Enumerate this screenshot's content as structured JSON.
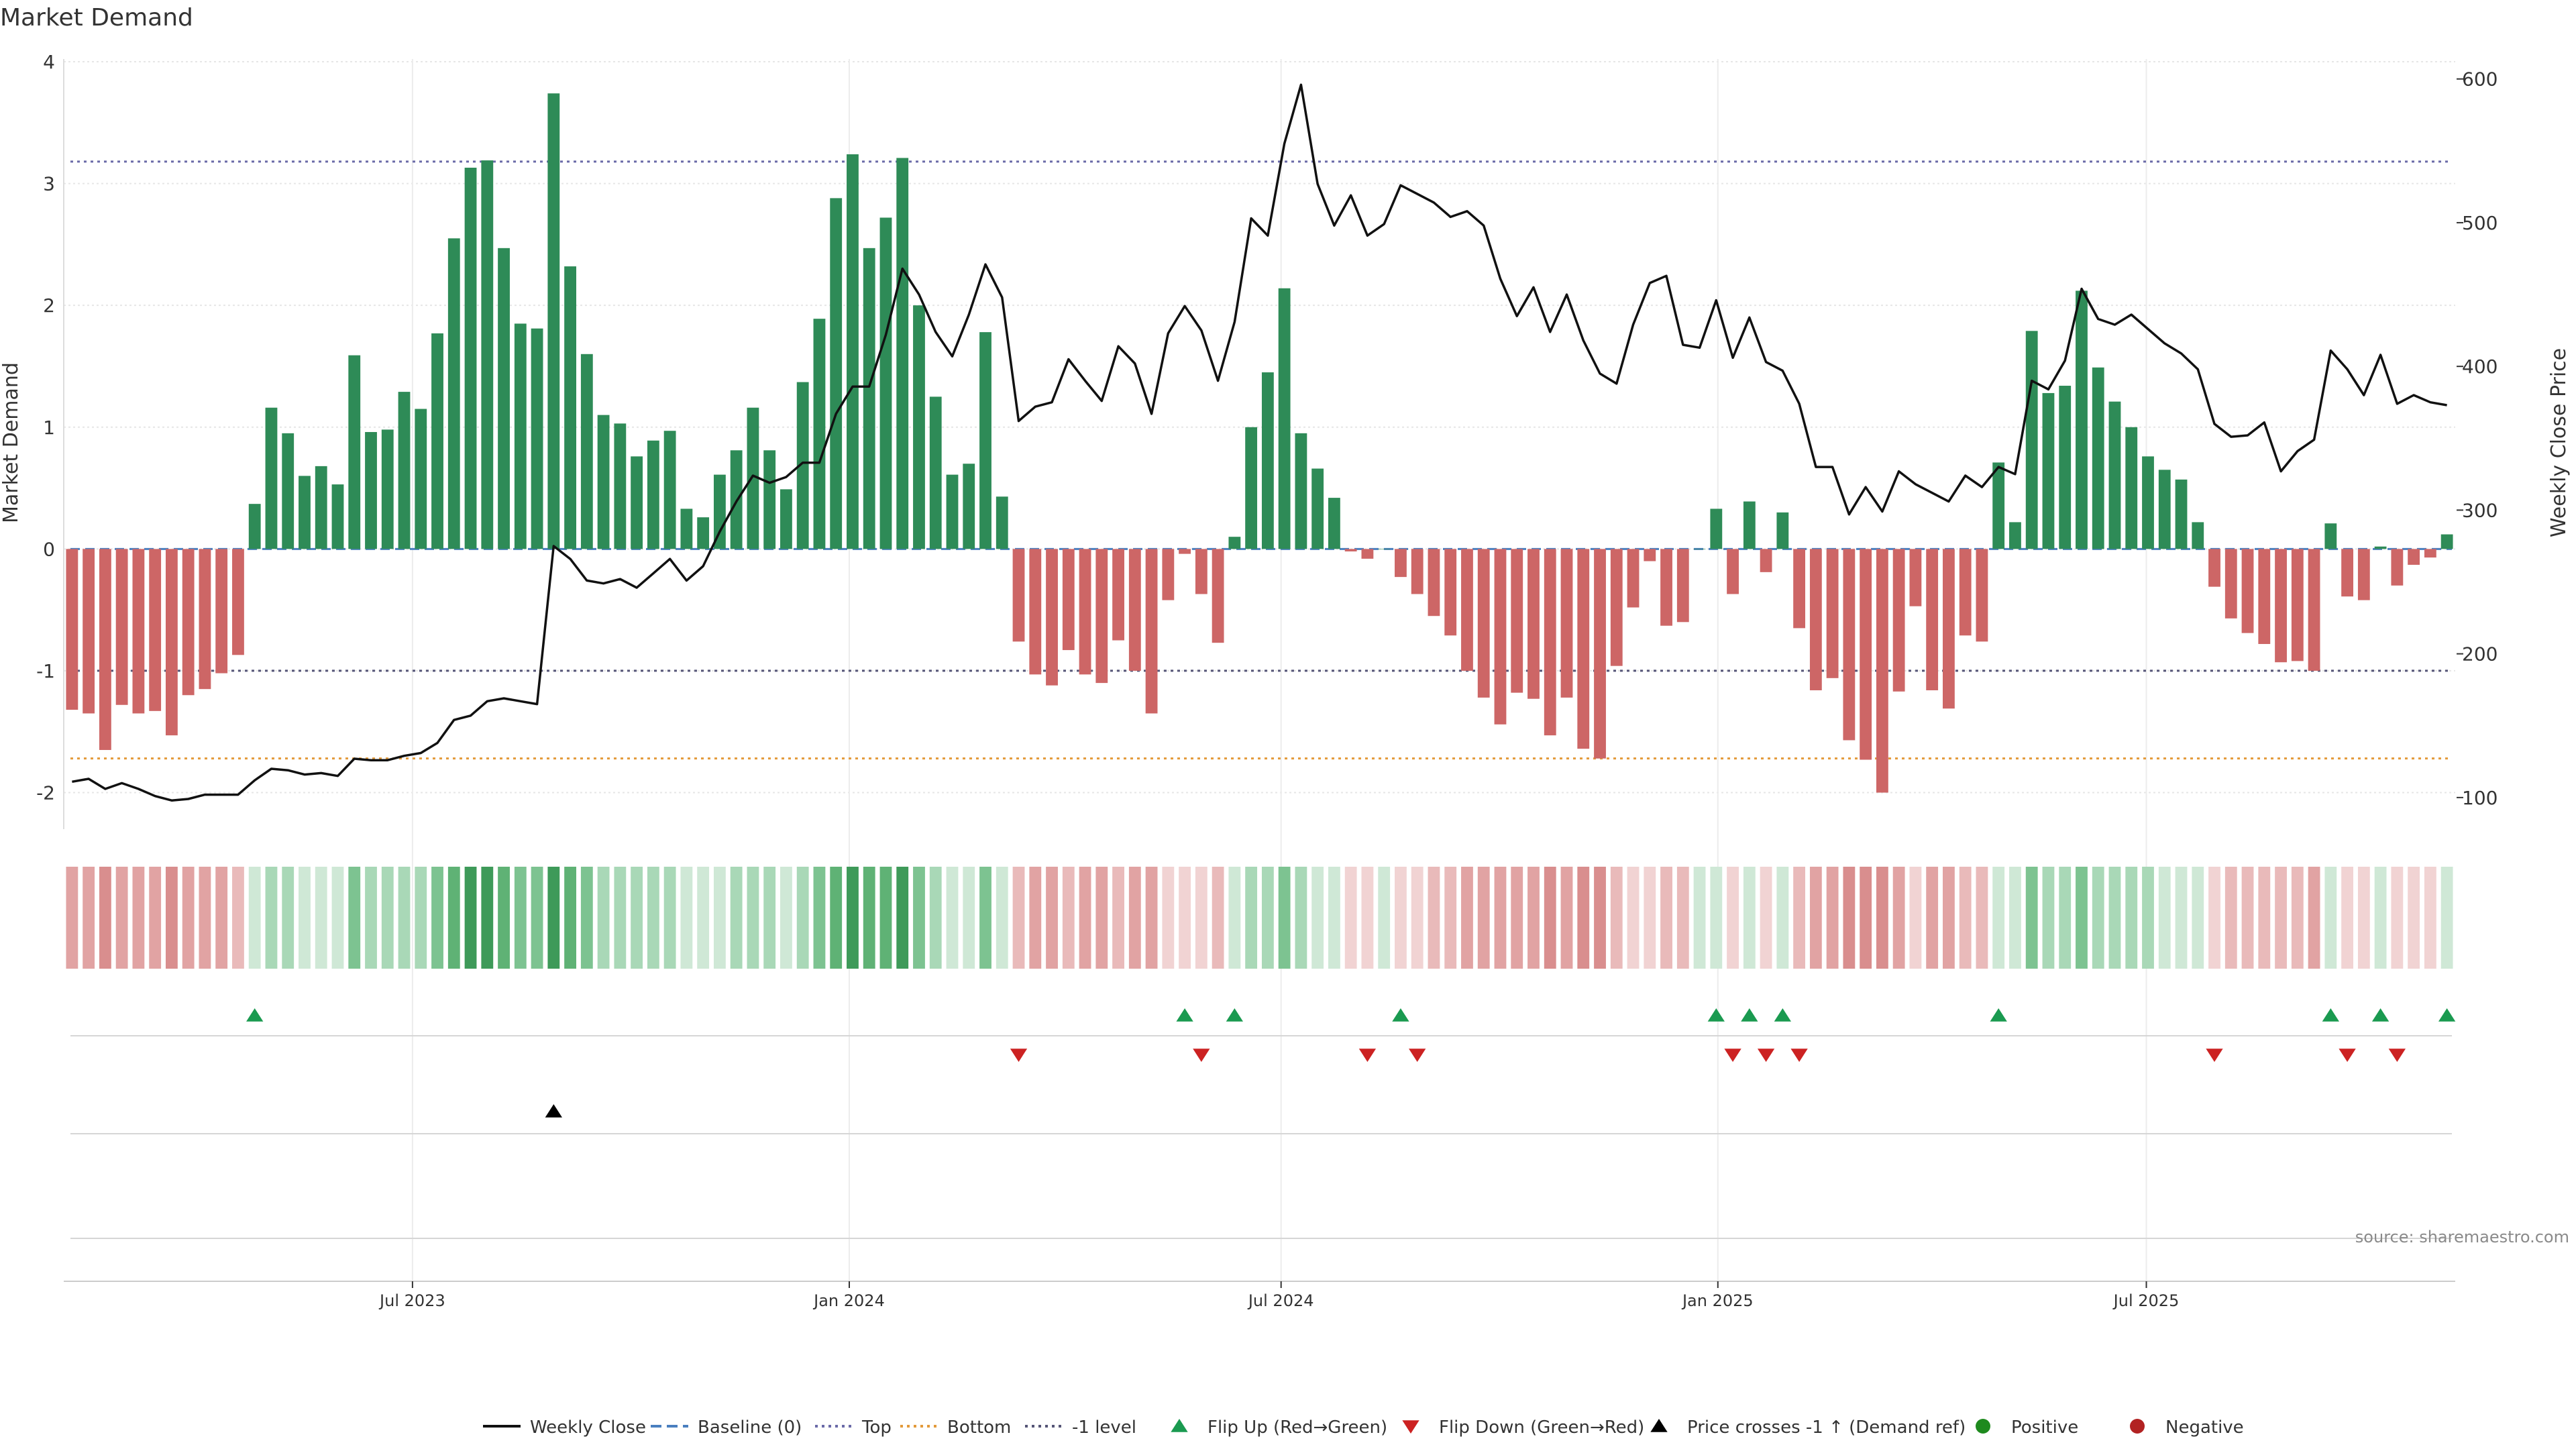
{
  "chart_data": {
    "type": "bar",
    "title": "Market Demand",
    "ylabel": "Market Demand",
    "y2label": "Weekly Close Price",
    "ylim": [
      -2.3,
      4.0
    ],
    "y2lim": [
      78,
      612
    ],
    "yticks": [
      -2,
      -1,
      0,
      1,
      2,
      3,
      4
    ],
    "y2ticks": [
      100,
      200,
      300,
      400,
      500,
      600
    ],
    "x_start": "2023-01-23",
    "week_interval_days": 7,
    "x_ticks": [
      {
        "label": "Jul 2023",
        "week": 21.0
      },
      {
        "label": "Jan 2024",
        "week": 47.3
      },
      {
        "label": "Jul 2024",
        "week": 73.3
      },
      {
        "label": "Jan 2025",
        "week": 99.6
      },
      {
        "label": "Jul 2025",
        "week": 125.4
      }
    ],
    "reference_lines": {
      "baseline": 0,
      "top": 3.18,
      "bottom": -1.72,
      "minus_one": -1.0
    },
    "series": [
      {
        "name": "Market Demand",
        "kind": "bar",
        "values": [
          -1.32,
          -1.35,
          -1.65,
          -1.28,
          -1.35,
          -1.33,
          -1.53,
          -1.2,
          -1.15,
          -1.02,
          -0.87,
          0.37,
          1.16,
          0.95,
          0.6,
          0.68,
          0.53,
          1.59,
          0.96,
          0.98,
          1.29,
          1.15,
          1.77,
          2.55,
          3.13,
          3.19,
          2.47,
          1.85,
          1.81,
          3.74,
          2.32,
          1.6,
          1.1,
          1.03,
          0.76,
          0.89,
          0.97,
          0.33,
          0.26,
          0.61,
          0.81,
          1.16,
          0.81,
          0.49,
          1.37,
          1.89,
          2.88,
          3.24,
          2.47,
          2.72,
          3.21,
          2.0,
          1.25,
          0.61,
          0.7,
          1.78,
          0.43,
          -0.76,
          -1.03,
          -1.12,
          -0.83,
          -1.03,
          -1.1,
          -0.75,
          -1.0,
          -1.35,
          -0.42,
          -0.04,
          -0.37,
          -0.77,
          0.1,
          1.0,
          1.45,
          2.14,
          0.95,
          0.66,
          0.42,
          -0.02,
          -0.08,
          0.0,
          -0.23,
          -0.37,
          -0.55,
          -0.71,
          -1.0,
          -1.22,
          -1.44,
          -1.18,
          -1.23,
          -1.53,
          -1.22,
          -1.64,
          -1.72,
          -0.96,
          -0.48,
          -0.1,
          -0.63,
          -0.6,
          0.0,
          0.33,
          -0.37,
          0.39,
          -0.19,
          0.3,
          -0.65,
          -1.16,
          -1.06,
          -1.57,
          -1.73,
          -2.0,
          -1.17,
          -0.47,
          -1.16,
          -1.31,
          -0.71,
          -0.76,
          0.71,
          0.22,
          1.79,
          1.28,
          1.34,
          2.12,
          1.49,
          1.21,
          1.0,
          0.76,
          0.65,
          0.57,
          0.22,
          -0.31,
          -0.57,
          -0.69,
          -0.78,
          -0.93,
          -0.92,
          -1.0,
          0.21,
          -0.39,
          -0.42,
          0.02,
          -0.3,
          -0.13,
          -0.07,
          0.12
        ]
      },
      {
        "name": "Weekly Close",
        "kind": "line",
        "axis": "right",
        "values": [
          111,
          113,
          106,
          110,
          106,
          101,
          98,
          99,
          102,
          102,
          102,
          112,
          120,
          119,
          116,
          117,
          115,
          127,
          126,
          126,
          129,
          131,
          138,
          154,
          157,
          167,
          169,
          167,
          165,
          275,
          266,
          251,
          249,
          252,
          246,
          256,
          266,
          251,
          261,
          285,
          306,
          324,
          319,
          323,
          333,
          333,
          367,
          386,
          386,
          422,
          468,
          450,
          424,
          407,
          436,
          471,
          448,
          362,
          372,
          375,
          405,
          390,
          376,
          414,
          402,
          367,
          423,
          442,
          425,
          390,
          431,
          503,
          491,
          555,
          596,
          527,
          498,
          519,
          491,
          499,
          526,
          520,
          514,
          504,
          508,
          498,
          461,
          435,
          455,
          424,
          450,
          418,
          395,
          388,
          429,
          458,
          463,
          415,
          413,
          446,
          406,
          434,
          403,
          397,
          374,
          330,
          330,
          297,
          316,
          299,
          327,
          318,
          312,
          306,
          324,
          316,
          330,
          325,
          390,
          384,
          404,
          454,
          433,
          429,
          436,
          426,
          416,
          409,
          398,
          360,
          351,
          352,
          361,
          327,
          341,
          349,
          411,
          398,
          380,
          408,
          374,
          380,
          375,
          373
        ]
      }
    ],
    "heatmap_strip": {
      "label": "Positive / Negative demand intensity strip"
    },
    "flip_up_weeks": [
      11,
      67,
      70,
      80,
      99,
      101,
      103,
      116,
      136,
      139,
      143
    ],
    "flip_down_weeks": [
      57,
      68,
      78,
      81,
      100,
      102,
      104,
      129,
      137,
      140
    ],
    "price_cross_weeks": [
      29
    ],
    "source": "source: sharemaestro.com",
    "colors": {
      "positive": "#2e8b57",
      "negative": "#cd6666",
      "price_line": "#111111",
      "baseline": "#4a7fbf",
      "top": "#6a6aa8",
      "bottom": "#e39a3a",
      "minus_one": "#555577",
      "flip_up": "#1a9a50",
      "flip_down": "#cc2222",
      "cross": "#000000",
      "pos_dot": "#1e8a1e",
      "neg_dot": "#b22222"
    },
    "legend": [
      {
        "id": "weekly-close",
        "label": "Weekly Close",
        "shape": "line"
      },
      {
        "id": "baseline",
        "label": "Baseline (0)",
        "shape": "dash"
      },
      {
        "id": "top",
        "label": "Top",
        "shape": "dot-line"
      },
      {
        "id": "bottom",
        "label": "Bottom",
        "shape": "dot-line-orange"
      },
      {
        "id": "minus-one",
        "label": "-1 level",
        "shape": "dot-line-dark"
      },
      {
        "id": "flip-up",
        "label": "Flip Up (Red→Green)",
        "shape": "tri-up-green"
      },
      {
        "id": "flip-down",
        "label": "Flip Down (Green→Red)",
        "shape": "tri-down-red"
      },
      {
        "id": "price-cross",
        "label": "Price crosses -1 ↑ (Demand ref)",
        "shape": "tri-up-black"
      },
      {
        "id": "positive",
        "label": "Positive",
        "shape": "dot-green"
      },
      {
        "id": "negative",
        "label": "Negative",
        "shape": "dot-red"
      }
    ]
  }
}
